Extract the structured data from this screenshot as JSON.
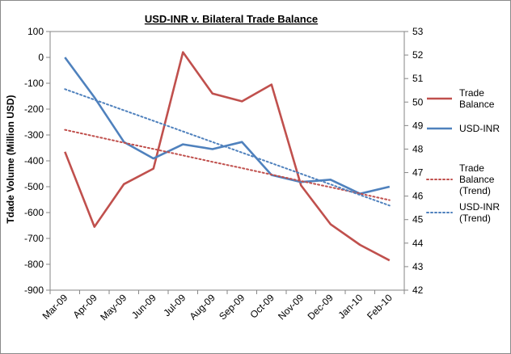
{
  "chart_data": {
    "type": "line",
    "title": "USD-INR v. Bilateral Trade Balance",
    "ylabel": "Tdade Volume (Million USD)",
    "xlabel": "",
    "categories": [
      "Mar-09",
      "Apr-09",
      "May-09",
      "Jun-09",
      "Jul-09",
      "Aug-09",
      "Sep-09",
      "Oct-09",
      "Nov-09",
      "Dec-09",
      "Jan-10",
      "Feb-10"
    ],
    "ylim": [
      -900,
      100
    ],
    "yticks": [
      "100",
      "0",
      "-100",
      "-200",
      "-300",
      "-400",
      "-500",
      "-600",
      "-700",
      "-800",
      "-900"
    ],
    "y2lim": [
      42,
      53
    ],
    "y2ticks": [
      "53",
      "52",
      "51",
      "50",
      "49",
      "48",
      "47",
      "46",
      "45",
      "44",
      "43",
      "42"
    ],
    "grid": false,
    "legend_position": "right",
    "series": [
      {
        "name": "Trade Balance",
        "axis": "left",
        "style": "solid",
        "color": "#C0504D",
        "values": [
          -365,
          -655,
          -490,
          -430,
          20,
          -140,
          -170,
          -105,
          -495,
          -645,
          -725,
          -785
        ]
      },
      {
        "name": "USD-INR",
        "axis": "right",
        "style": "solid",
        "color": "#4F81BD",
        "values": [
          51.9,
          50.2,
          48.3,
          47.6,
          48.2,
          48.0,
          48.3,
          46.9,
          46.6,
          46.7,
          46.1,
          46.4
        ]
      },
      {
        "name": "Trade Balance (Trend)",
        "axis": "left",
        "style": "dotted",
        "color": "#C0504D",
        "values": [
          -280,
          -305,
          -330,
          -354,
          -379,
          -404,
          -428,
          -453,
          -478,
          -502,
          -527,
          -552
        ]
      },
      {
        "name": "USD-INR (Trend)",
        "axis": "right",
        "style": "dotted",
        "color": "#4F81BD",
        "values": [
          50.55,
          50.1,
          49.65,
          49.2,
          48.75,
          48.3,
          47.85,
          47.4,
          46.95,
          46.5,
          46.05,
          45.6
        ]
      }
    ],
    "legend": [
      {
        "lines": [
          "Trade",
          "Balance"
        ]
      },
      {
        "lines": [
          "USD-INR"
        ]
      },
      {
        "lines": [
          "Trade",
          "Balance",
          "(Trend)"
        ]
      },
      {
        "lines": [
          "USD-INR",
          "(Trend)"
        ]
      }
    ]
  }
}
